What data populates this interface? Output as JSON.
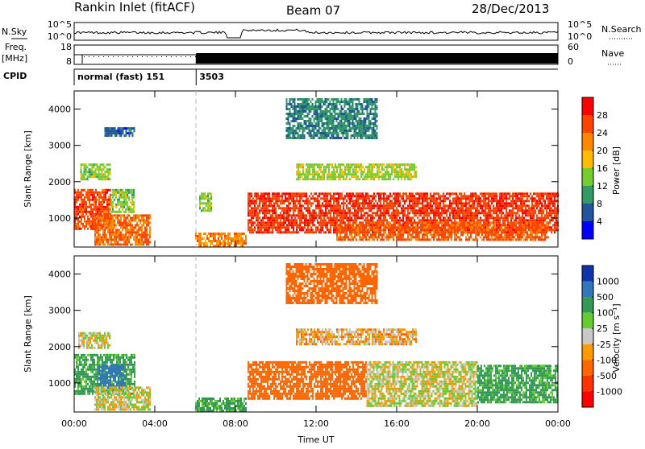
{
  "header": {
    "station": "Rankin Inlet (fitACF)",
    "beam": "Beam 07",
    "date": "28/Dec/2013"
  },
  "top_panels": {
    "nsky_label": "N.Sky",
    "nsearch_label": "N.Search",
    "nsky_ticks": [
      "10^5",
      "10^0"
    ],
    "nsearch_ticks": [
      "10^5",
      "10^0"
    ],
    "freq_label": "Freq.",
    "freq_unit": "[MHz]",
    "freq_ticks": [
      "18",
      "8"
    ],
    "nave_label": "Nave",
    "nave_ticks": [
      "60",
      "0"
    ],
    "cpid_label": "CPID",
    "cpid_segments": [
      {
        "start_hour": 0.0,
        "end_hour": 6.05,
        "label": "normal (fast) 151"
      },
      {
        "start_hour": 6.05,
        "end_hour": 24.0,
        "label": "3503"
      }
    ]
  },
  "axes": {
    "y_label": "Slant Range [km]",
    "y_ticks": [
      "4000",
      "3000",
      "2000",
      "1000"
    ],
    "x_ticks": [
      "00:00",
      "04:00",
      "08:00",
      "12:00",
      "16:00",
      "20:00",
      "00:00"
    ],
    "x_label": "Time UT"
  },
  "colorbars": {
    "power": {
      "label": "Power [dB]",
      "ticks": [
        "28",
        "24",
        "20",
        "16",
        "12",
        "8",
        "4"
      ],
      "colors": [
        "#ff0000",
        "#ff4400",
        "#ff8800",
        "#ffbb00",
        "#77cc33",
        "#339966",
        "#225599",
        "#0000ff"
      ]
    },
    "velocity": {
      "label": "Velocity [m s⁻¹]",
      "ticks": [
        "1000",
        "500",
        "100",
        "25",
        "-25",
        "-100",
        "-500",
        "-1000"
      ],
      "colors": [
        "#1133aa",
        "#3377bb",
        "#339955",
        "#66cc33",
        "#c8c8c8",
        "#ff9900",
        "#ff6600",
        "#ff3300",
        "#ff0000"
      ]
    }
  },
  "chart_data": [
    {
      "type": "heatmap",
      "name": "Power",
      "x_unit": "hours UT",
      "y_unit": "km",
      "xlim": [
        0,
        24
      ],
      "ylim": [
        200,
        4500
      ],
      "colorbar_range_db": [
        0,
        32
      ],
      "regions": [
        {
          "x0": 0.0,
          "x1": 1.8,
          "y0": 700,
          "y1": 1800,
          "value": 26
        },
        {
          "x0": 1.8,
          "x1": 3.0,
          "y0": 1200,
          "y1": 1800,
          "value": 14
        },
        {
          "x0": 1.0,
          "x1": 3.8,
          "y0": 250,
          "y1": 1100,
          "value": 24
        },
        {
          "x0": 0.3,
          "x1": 1.8,
          "y0": 2100,
          "y1": 2500,
          "value": 14
        },
        {
          "x0": 6.2,
          "x1": 6.8,
          "y0": 1200,
          "y1": 1700,
          "value": 14
        },
        {
          "x0": 6.0,
          "x1": 8.5,
          "y0": 250,
          "y1": 600,
          "value": 22
        },
        {
          "x0": 8.6,
          "x1": 24.0,
          "y0": 600,
          "y1": 1700,
          "value": 27
        },
        {
          "x0": 13.0,
          "x1": 23.5,
          "y0": 400,
          "y1": 900,
          "value": 25
        },
        {
          "x0": 11.0,
          "x1": 17.0,
          "y0": 2100,
          "y1": 2500,
          "value": 15
        },
        {
          "x0": 10.5,
          "x1": 15.0,
          "y0": 3200,
          "y1": 4300,
          "value": 9
        },
        {
          "x0": 1.5,
          "x1": 3.0,
          "y0": 3300,
          "y1": 3500,
          "value": 6
        }
      ]
    },
    {
      "type": "heatmap",
      "name": "Velocity",
      "x_unit": "hours UT",
      "y_unit": "km",
      "xlim": [
        0,
        24
      ],
      "ylim": [
        200,
        4500
      ],
      "regions": [
        {
          "x0": 0.0,
          "x1": 3.0,
          "y0": 700,
          "y1": 1800,
          "value": 150
        },
        {
          "x0": 1.2,
          "x1": 2.5,
          "y0": 900,
          "y1": 1500,
          "value": 700
        },
        {
          "x0": 1.0,
          "x1": 3.8,
          "y0": 250,
          "y1": 900,
          "value": 0
        },
        {
          "x0": 0.2,
          "x1": 1.8,
          "y0": 2000,
          "y1": 2400,
          "value": 0
        },
        {
          "x0": 6.0,
          "x1": 8.5,
          "y0": 250,
          "y1": 600,
          "value": 150
        },
        {
          "x0": 8.6,
          "x1": 14.5,
          "y0": 600,
          "y1": 1600,
          "value": -300
        },
        {
          "x0": 14.5,
          "x1": 20.0,
          "y0": 400,
          "y1": 1600,
          "value": 0
        },
        {
          "x0": 20.0,
          "x1": 24.0,
          "y0": 500,
          "y1": 1500,
          "value": 150
        },
        {
          "x0": 11.0,
          "x1": 17.0,
          "y0": 2100,
          "y1": 2500,
          "value": -60
        },
        {
          "x0": 10.5,
          "x1": 15.0,
          "y0": 3200,
          "y1": 4300,
          "value": -200
        }
      ]
    }
  ]
}
